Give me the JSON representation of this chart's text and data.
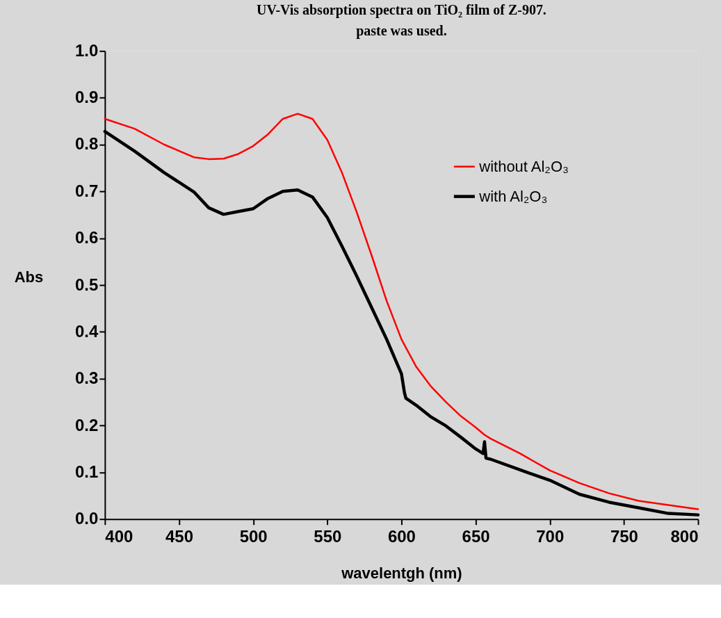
{
  "chart_data": {
    "type": "line",
    "title": "UV-Vis absorption spectra on TiO₂ film of Z-907.",
    "subtitle": "paste was used.",
    "xlabel": "wavelentgh (nm)",
    "ylabel": "Abs",
    "xlim": [
      400,
      800
    ],
    "xticks": [
      400,
      450,
      500,
      550,
      600,
      650,
      700,
      750,
      800
    ],
    "ylim": [
      0,
      1
    ],
    "yticks": [
      {
        "value": 0,
        "label": "0.0"
      },
      {
        "value": 0.1,
        "label": "0.1"
      },
      {
        "value": 0.2,
        "label": "0.2"
      },
      {
        "value": 0.3,
        "label": "0.3"
      },
      {
        "value": 0.4,
        "label": "0.4"
      },
      {
        "value": 0.5,
        "label": "0.5"
      },
      {
        "value": 0.6,
        "label": "0.6"
      },
      {
        "value": 0.7,
        "label": "0.7"
      },
      {
        "value": 0.8,
        "label": "0.8"
      },
      {
        "value": 0.9,
        "label": "0.9"
      },
      {
        "value": 1,
        "label": "1.0"
      }
    ],
    "legend": "top right",
    "marker": "none",
    "line_style": "solid",
    "series": [
      {
        "name": "without Al₂O₃",
        "color": "#ff0000",
        "x": [
          400,
          420,
          440,
          460,
          470,
          480,
          490,
          500,
          510,
          520,
          530,
          540,
          550,
          560,
          570,
          580,
          590,
          600,
          610,
          620,
          630,
          640,
          650,
          656,
          660,
          680,
          700,
          720,
          740,
          760,
          780,
          800
        ],
        "values": [
          0.855,
          0.834,
          0.8,
          0.773,
          0.769,
          0.77,
          0.78,
          0.797,
          0.822,
          0.855,
          0.866,
          0.855,
          0.81,
          0.739,
          0.654,
          0.562,
          0.466,
          0.384,
          0.325,
          0.283,
          0.25,
          0.22,
          0.196,
          0.18,
          0.172,
          0.14,
          0.104,
          0.077,
          0.055,
          0.039,
          0.03,
          0.021
        ]
      },
      {
        "name": "with Al₂O₃",
        "color": "#000000",
        "x": [
          400,
          420,
          440,
          460,
          470,
          480,
          490,
          500,
          510,
          520,
          530,
          540,
          550,
          560,
          570,
          580,
          590,
          600,
          602,
          603,
          610,
          620,
          630,
          640,
          650,
          655,
          656,
          657,
          660,
          680,
          700,
          720,
          740,
          760,
          780,
          800
        ],
        "values": [
          0.828,
          0.786,
          0.74,
          0.699,
          0.665,
          0.651,
          0.657,
          0.663,
          0.685,
          0.7,
          0.703,
          0.688,
          0.644,
          0.582,
          0.518,
          0.451,
          0.384,
          0.31,
          0.27,
          0.258,
          0.243,
          0.218,
          0.199,
          0.175,
          0.15,
          0.14,
          0.165,
          0.13,
          0.128,
          0.105,
          0.083,
          0.053,
          0.036,
          0.024,
          0.012,
          0.009
        ]
      }
    ]
  }
}
